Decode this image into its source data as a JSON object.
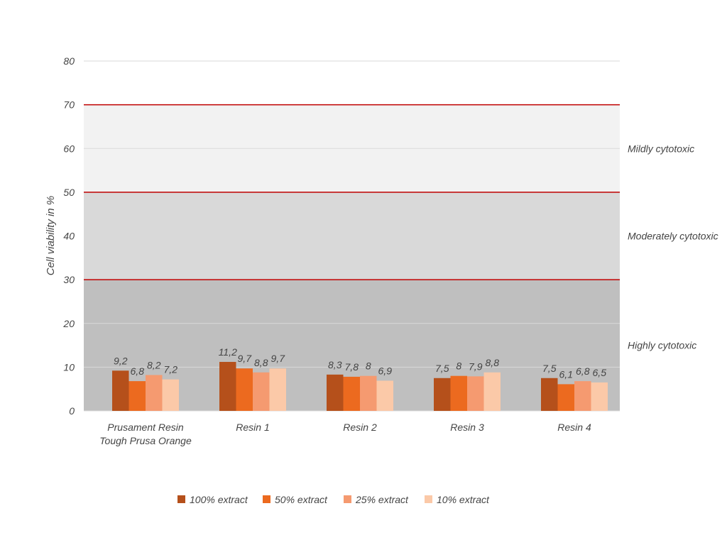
{
  "chart_data": {
    "type": "bar",
    "ylabel": "Cell viability in %",
    "xlabel": "",
    "ylim": [
      0,
      80
    ],
    "yticks": [
      0,
      10,
      20,
      30,
      40,
      50,
      60,
      70,
      80
    ],
    "grid": true,
    "legend_position": "bottom",
    "categories": [
      [
        "Prusament Resin",
        "Tough Prusa Orange"
      ],
      [
        "Resin 1"
      ],
      [
        "Resin 2"
      ],
      [
        "Resin 3"
      ],
      [
        "Resin 4"
      ]
    ],
    "series": [
      {
        "name": "100% extract",
        "color": "#b5501b",
        "values": [
          9.2,
          11.2,
          8.3,
          7.5,
          7.5
        ],
        "labels": [
          "9,2",
          "11,2",
          "8,3",
          "7,5",
          "7,5"
        ]
      },
      {
        "name": "50% extract",
        "color": "#ec6a1f",
        "values": [
          6.8,
          9.7,
          7.8,
          8,
          6.1
        ],
        "labels": [
          "6,8",
          "9,7",
          "7,8",
          "8",
          "6,1"
        ]
      },
      {
        "name": "25% extract",
        "color": "#f59a70",
        "values": [
          8.2,
          8.8,
          8,
          7.9,
          6.8
        ],
        "labels": [
          "8,2",
          "8,8",
          "8",
          "7,9",
          "6,8"
        ]
      },
      {
        "name": "10% extract",
        "color": "#fbc9a8",
        "values": [
          7.2,
          9.7,
          6.9,
          8.8,
          6.5
        ],
        "labels": [
          "7,2",
          "9,7",
          "6,9",
          "8,8",
          "6,5"
        ]
      }
    ],
    "zones": [
      {
        "label": "Highly cytotoxic",
        "from": 0,
        "to": 30,
        "color": "#bfbfbf"
      },
      {
        "label": "Moderately cytotoxic",
        "from": 30,
        "to": 50,
        "color": "#d9d9d9"
      },
      {
        "label": "Mildly cytotoxic",
        "from": 50,
        "to": 70,
        "color": "#f2f2f2"
      }
    ],
    "threshold_lines": [
      30,
      50,
      70
    ],
    "threshold_color": "#c00000",
    "grid_color": "#d9d9d9"
  }
}
